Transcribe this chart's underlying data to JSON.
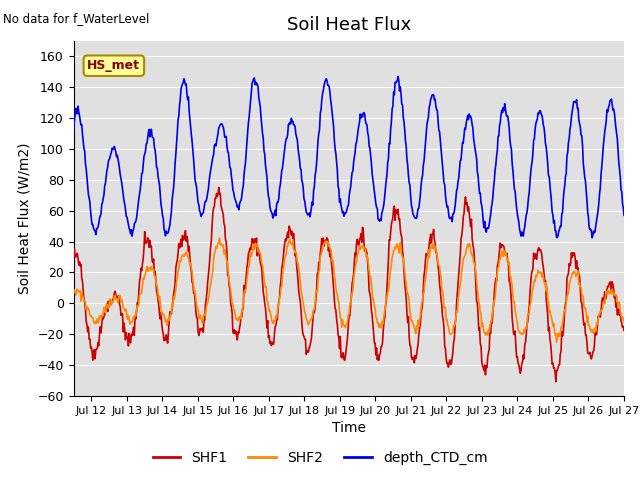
{
  "title": "Soil Heat Flux",
  "topleft_text": "No data for f_WaterLevel",
  "xlabel": "Time",
  "ylabel": "Soil Heat Flux (W/m2)",
  "ylim": [
    -60,
    170
  ],
  "yticks": [
    -60,
    -40,
    -20,
    0,
    20,
    40,
    60,
    80,
    100,
    120,
    140,
    160
  ],
  "legend_label": "HS_met",
  "legend_bg": "#FFFF99",
  "legend_border": "#AA8800",
  "bg_color": "#E0E0E0",
  "grid_color": "#FFFFFF",
  "series": {
    "SHF1": {
      "color": "#CC0000",
      "lw": 1.2
    },
    "SHF2": {
      "color": "#FF8800",
      "lw": 1.2
    },
    "depth_CTD_cm": {
      "color": "#0000EE",
      "lw": 1.2
    }
  },
  "xlim": [
    11.5,
    27.0
  ],
  "xticks": [
    12,
    13,
    14,
    15,
    16,
    17,
    18,
    19,
    20,
    21,
    22,
    23,
    24,
    25,
    26,
    27
  ],
  "start_dom": 11.5
}
